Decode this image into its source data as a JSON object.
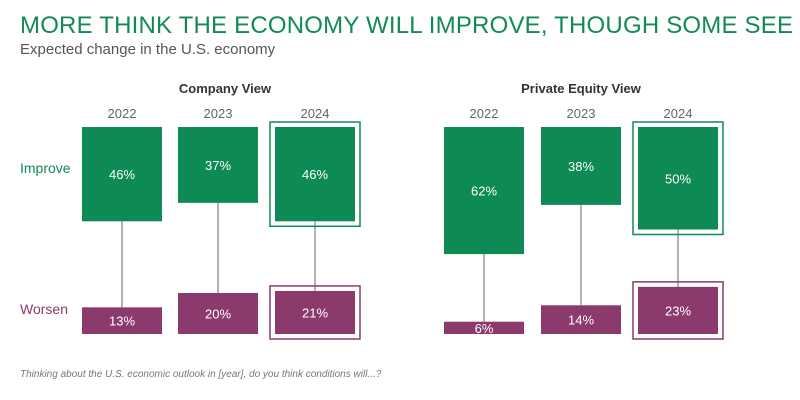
{
  "title": "MORE THINK THE ECONOMY WILL IMPROVE, THOUGH SOME SEE RISK",
  "subtitle": "Expected change in the U.S. economy",
  "footnote": "Thinking about the U.S. economic outlook in [year], do you think conditions will...?",
  "colors": {
    "improve": "#0e8a54",
    "worsen": "#8b3a6b",
    "title": "#138a55",
    "connector": "#999999",
    "text": "#555555"
  },
  "chart_data": {
    "type": "bar",
    "value_unit": "%",
    "row_labels": {
      "improve": "Improve",
      "worsen": "Worsen"
    },
    "highlight_year": "2024",
    "panels": [
      {
        "title": "Company View",
        "categories": [
          "2022",
          "2023",
          "2024"
        ],
        "series": [
          {
            "name": "Improve",
            "values": [
              46,
              37,
              46
            ]
          },
          {
            "name": "Worsen",
            "values": [
              13,
              20,
              21
            ]
          }
        ]
      },
      {
        "title": "Private Equity View",
        "categories": [
          "2022",
          "2023",
          "2024"
        ],
        "series": [
          {
            "name": "Improve",
            "values": [
              62,
              38,
              50
            ]
          },
          {
            "name": "Worsen",
            "values": [
              6,
              14,
              23
            ]
          }
        ]
      }
    ]
  }
}
